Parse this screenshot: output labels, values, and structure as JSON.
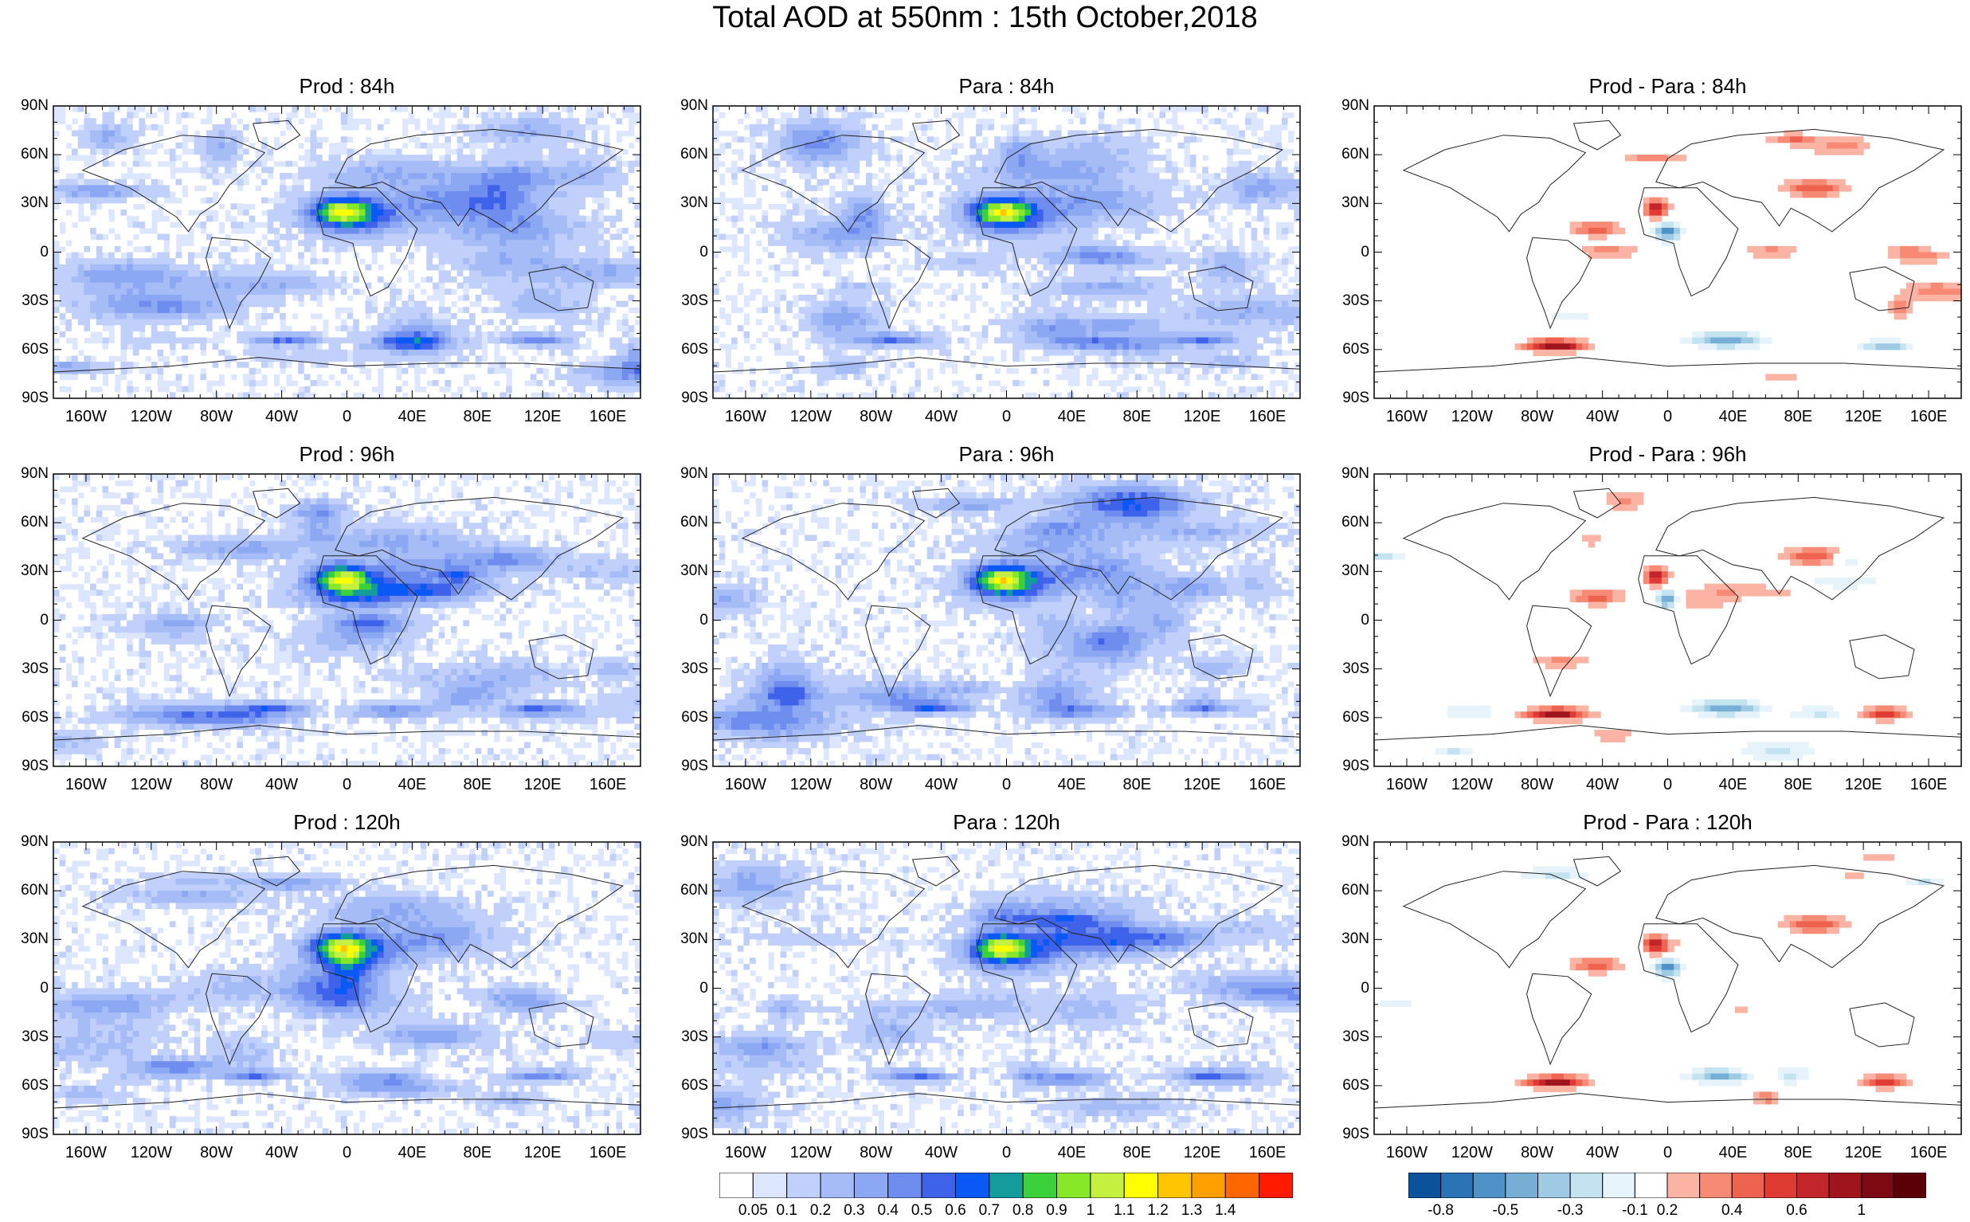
{
  "title": "Total AOD at 550nm : 15th October,2018",
  "lat_ticks": [
    "90N",
    "60N",
    "30N",
    "0",
    "30S",
    "60S",
    "90S"
  ],
  "lon_ticks": [
    "160W",
    "120W",
    "80W",
    "40W",
    "0",
    "40E",
    "80E",
    "120E",
    "160E"
  ],
  "panels": [
    {
      "title": "Prod : 84h",
      "kind": "aod",
      "seed": 11
    },
    {
      "title": "Para : 84h",
      "kind": "aod",
      "seed": 12
    },
    {
      "title": "Prod - Para : 84h",
      "kind": "diff",
      "seed": 13
    },
    {
      "title": "Prod : 96h",
      "kind": "aod",
      "seed": 21
    },
    {
      "title": "Para : 96h",
      "kind": "aod",
      "seed": 22
    },
    {
      "title": "Prod - Para : 96h",
      "kind": "diff",
      "seed": 23
    },
    {
      "title": "Prod : 120h",
      "kind": "aod",
      "seed": 31
    },
    {
      "title": "Para : 120h",
      "kind": "aod",
      "seed": 32
    },
    {
      "title": "Prod - Para : 120h",
      "kind": "diff",
      "seed": 33
    }
  ],
  "aod_colorbar": {
    "labels": [
      "0.05",
      "0.1",
      "0.2",
      "0.3",
      "0.4",
      "0.5",
      "0.6",
      "0.7",
      "0.8",
      "0.9",
      "1",
      "1.1",
      "1.2",
      "1.3",
      "1.4"
    ],
    "colors": [
      "#ffffff",
      "#dde6ff",
      "#c0d0fa",
      "#a6bcf6",
      "#8ca8f2",
      "#6f8cef",
      "#3e63ea",
      "#0a58f5",
      "#149c9c",
      "#3bd13b",
      "#87e82a",
      "#c6f040",
      "#ffff00",
      "#ffc600",
      "#ffa000",
      "#ff6600",
      "#ff1a00"
    ]
  },
  "diff_colorbar": {
    "labels": [
      "-0.8",
      "-0.5",
      "-0.3",
      "-0.1",
      "0.2",
      "0.4",
      "0.6",
      "1"
    ],
    "colors": [
      "#0a529c",
      "#2a73b5",
      "#4e92c8",
      "#76aed6",
      "#9ecbe3",
      "#c4e3f0",
      "#e6f3fa",
      "#ffffff",
      "#fbb4a4",
      "#f68a74",
      "#ee6350",
      "#e03a35",
      "#c2262a",
      "#a0141e",
      "#7d0a12",
      "#5c0008"
    ]
  }
}
